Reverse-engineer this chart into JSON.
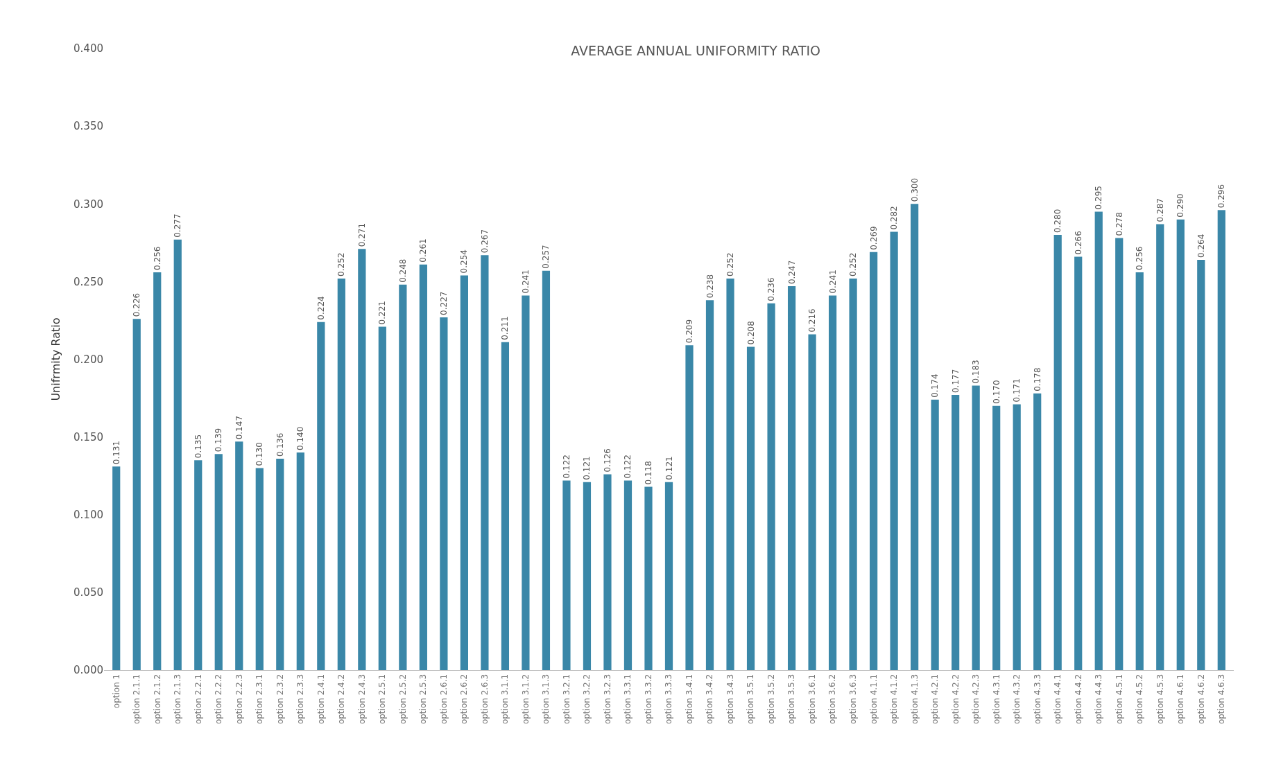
{
  "chart_data": {
    "type": "bar",
    "title": "AVERAGE ANNUAL UNIFORMITY RATIO",
    "ylabel": "Unifrmity Ratio",
    "categories": [
      "option 1",
      "option 2.1.1",
      "option 2.1.2",
      "option 2.1.3",
      "option 2.2.1",
      "option 2.2.2",
      "option 2.2.3",
      "option 2.3.1",
      "option 2.3.2",
      "option 2.3.3",
      "option 2.4.1",
      "option 2.4.2",
      "option 2.4.3",
      "option 2.5.1",
      "option 2.5.2",
      "option 2.5.3",
      "option 2.6.1",
      "option 2.6.2",
      "option 2.6.3",
      "option 3.1.1",
      "option 3.1.2",
      "option 3.1.3",
      "option 3.2.1",
      "option 3.2.2",
      "option 3.2.3",
      "option 3.3.1",
      "option 3.3.2",
      "option 3.3.3",
      "option 3.4.1",
      "option 3.4.2",
      "option 3.4.3",
      "option 3.5.1",
      "option 3.5.2",
      "option 3.5.3",
      "option 3.6.1",
      "option 3.6.2",
      "option 3.6.3",
      "option 4.1.1",
      "option 4.1.2",
      "option 4.1.3",
      "option 4.2.1",
      "option 4.2.2",
      "option 4.2.3",
      "option 4.3.1",
      "option 4.3.2",
      "option 4.3.3",
      "option 4.4.1",
      "option 4.4.2",
      "option 4.4.3",
      "option 4.5.1",
      "option 4.5.2",
      "option 4.5.3",
      "option 4.6.1",
      "option 4.6.2",
      "option 4.6.3"
    ],
    "values": [
      0.131,
      0.226,
      0.256,
      0.277,
      0.135,
      0.139,
      0.147,
      0.13,
      0.136,
      0.14,
      0.224,
      0.252,
      0.271,
      0.221,
      0.248,
      0.261,
      0.227,
      0.254,
      0.267,
      0.211,
      0.241,
      0.257,
      0.122,
      0.121,
      0.126,
      0.122,
      0.118,
      0.121,
      0.209,
      0.238,
      0.252,
      0.208,
      0.236,
      0.247,
      0.216,
      0.241,
      0.252,
      0.269,
      0.282,
      0.3,
      0.174,
      0.177,
      0.183,
      0.17,
      0.171,
      0.178,
      0.28,
      0.266,
      0.295,
      0.278,
      0.256,
      0.287,
      0.29,
      0.264,
      0.296
    ],
    "value_labels": [
      "0.131",
      "0.226",
      "0.256",
      "0.277",
      "0.135",
      "0.139",
      "0.147",
      "0.130",
      "0.136",
      "0.140",
      "0.224",
      "0.252",
      "0.271",
      "0.221",
      "0.248",
      "0.261",
      "0.227",
      "0.254",
      "0.267",
      "0.211",
      "0.241",
      "0.257",
      "0.122",
      "0.121",
      "0.126",
      "0.122",
      "0.118",
      "0.121",
      "0.209",
      "0.238",
      "0.252",
      "0.208",
      "0.236",
      "0.247",
      "0.216",
      "0.241",
      "0.252",
      "0.269",
      "0.282",
      "0.300",
      "0.174",
      "0.177",
      "0.183",
      "0.170",
      "0.171",
      "0.178",
      "0.280",
      "0.266",
      "0.295",
      "0.278",
      "0.256",
      "0.287",
      "0.290",
      "0.264",
      "0.296"
    ],
    "color": "#3a87a8",
    "ylim": [
      0,
      0.4
    ],
    "yticks": [
      {
        "value": 0,
        "label": "0.000"
      },
      {
        "value": 0.05,
        "label": "0.050"
      },
      {
        "value": 0.1,
        "label": "0.100"
      },
      {
        "value": 0.15,
        "label": "0.150"
      },
      {
        "value": 0.2,
        "label": "0.200"
      },
      {
        "value": 0.25,
        "label": "0.250"
      },
      {
        "value": 0.3,
        "label": "0.300"
      },
      {
        "value": 0.35,
        "label": "0.350"
      },
      {
        "value": 0.4,
        "label": "0.400"
      }
    ],
    "tick_labels": true
  }
}
